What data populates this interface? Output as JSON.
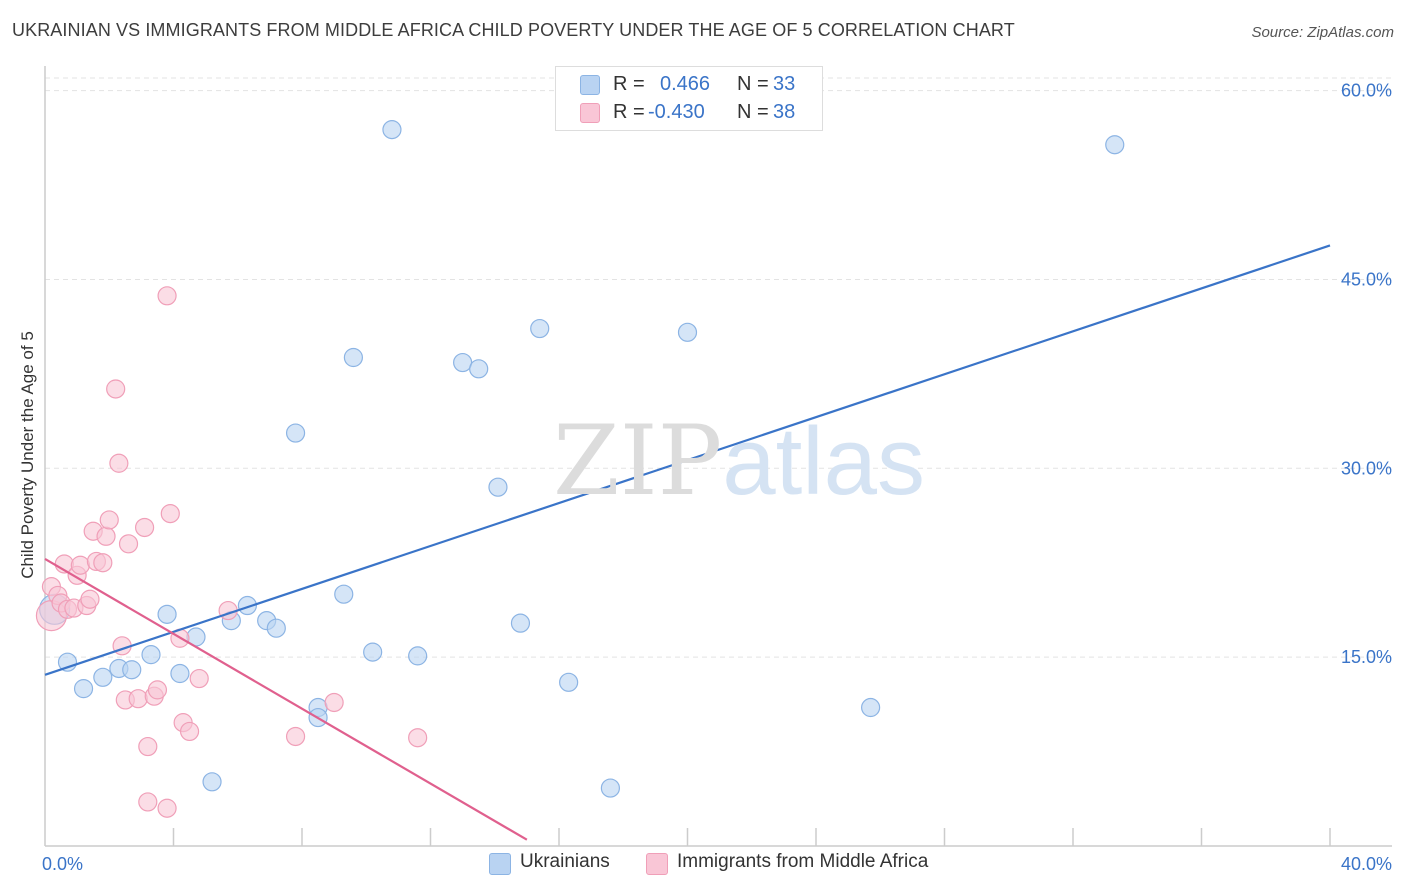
{
  "title": "UKRAINIAN VS IMMIGRANTS FROM MIDDLE AFRICA CHILD POVERTY UNDER THE AGE OF 5 CORRELATION CHART",
  "source": "Source: ZipAtlas.com",
  "watermark": {
    "zip": "ZIP",
    "atlas": "atlas"
  },
  "colors": {
    "blue_fill": "#b9d3f2",
    "blue_stroke": "#8cb4e4",
    "blue_line": "#3a74c8",
    "pink_fill": "#f9c6d6",
    "pink_stroke": "#f09fb8",
    "pink_line": "#e0608e",
    "grid": "#e3e3e3",
    "axis": "#cccccc",
    "tick_text": "#3a74c8"
  },
  "stats": {
    "rows": [
      {
        "r_label": "R =",
        "r_value": "0.466",
        "n_label": "N =",
        "n_value": "33",
        "color": "blue"
      },
      {
        "r_label": "R =",
        "r_value": "-0.430",
        "n_label": "N =",
        "n_value": "38",
        "color": "pink"
      }
    ]
  },
  "legend": {
    "items": [
      "Ukrainians",
      "Immigrants from Middle Africa"
    ]
  },
  "chart_data": {
    "type": "scatter",
    "title": "UKRAINIAN VS IMMIGRANTS FROM MIDDLE AFRICA CHILD POVERTY UNDER THE AGE OF 5 CORRELATION CHART",
    "xlabel": "",
    "ylabel": "Child Poverty Under the Age of 5",
    "xlim": [
      0,
      40
    ],
    "ylim": [
      0,
      61
    ],
    "x_ticks": [
      {
        "value": 0,
        "label": "0.0%"
      },
      {
        "value": 40,
        "label": "40.0%"
      }
    ],
    "y_ticks": [
      {
        "value": 15,
        "label": "15.0%"
      },
      {
        "value": 30,
        "label": "30.0%"
      },
      {
        "value": 45,
        "label": "45.0%"
      },
      {
        "value": 60,
        "label": "60.0%"
      }
    ],
    "grid": true,
    "legend_position": "bottom-center",
    "series": [
      {
        "name": "Ukrainians",
        "color": "blue",
        "trendline": {
          "x": [
            0,
            40
          ],
          "y": [
            13.6,
            47.7
          ]
        },
        "points": [
          {
            "x": 0.3,
            "y": 18.8,
            "big": true
          },
          {
            "x": 0.7,
            "y": 14.6
          },
          {
            "x": 1.2,
            "y": 12.5
          },
          {
            "x": 1.8,
            "y": 13.4
          },
          {
            "x": 2.3,
            "y": 14.1
          },
          {
            "x": 2.7,
            "y": 14.0
          },
          {
            "x": 3.3,
            "y": 15.2
          },
          {
            "x": 3.8,
            "y": 18.4
          },
          {
            "x": 4.2,
            "y": 13.7
          },
          {
            "x": 4.7,
            "y": 16.6
          },
          {
            "x": 5.2,
            "y": 5.1
          },
          {
            "x": 5.8,
            "y": 17.9
          },
          {
            "x": 6.3,
            "y": 19.1
          },
          {
            "x": 6.9,
            "y": 17.9
          },
          {
            "x": 7.2,
            "y": 17.3
          },
          {
            "x": 7.8,
            "y": 32.8
          },
          {
            "x": 8.5,
            "y": 11.0
          },
          {
            "x": 8.5,
            "y": 10.2
          },
          {
            "x": 9.3,
            "y": 20.0
          },
          {
            "x": 9.6,
            "y": 38.8
          },
          {
            "x": 10.2,
            "y": 15.4
          },
          {
            "x": 10.8,
            "y": 56.9
          },
          {
            "x": 11.6,
            "y": 15.1
          },
          {
            "x": 13.0,
            "y": 38.4
          },
          {
            "x": 13.5,
            "y": 37.9
          },
          {
            "x": 14.1,
            "y": 28.5
          },
          {
            "x": 14.8,
            "y": 17.7
          },
          {
            "x": 15.4,
            "y": 41.1
          },
          {
            "x": 16.3,
            "y": 13.0
          },
          {
            "x": 17.6,
            "y": 4.6
          },
          {
            "x": 20.0,
            "y": 40.8
          },
          {
            "x": 25.7,
            "y": 11.0
          },
          {
            "x": 33.3,
            "y": 55.7
          }
        ]
      },
      {
        "name": "Immigrants from Middle Africa",
        "color": "pink",
        "trendline": {
          "x": [
            0,
            15.0
          ],
          "y": [
            22.8,
            0.5
          ]
        },
        "points": [
          {
            "x": 0.2,
            "y": 18.3,
            "big": true
          },
          {
            "x": 0.2,
            "y": 20.6
          },
          {
            "x": 0.4,
            "y": 19.9
          },
          {
            "x": 0.5,
            "y": 19.3
          },
          {
            "x": 0.6,
            "y": 22.4
          },
          {
            "x": 0.7,
            "y": 18.8
          },
          {
            "x": 0.9,
            "y": 18.9
          },
          {
            "x": 1.0,
            "y": 21.5
          },
          {
            "x": 1.1,
            "y": 22.3
          },
          {
            "x": 1.3,
            "y": 19.1
          },
          {
            "x": 1.4,
            "y": 19.6
          },
          {
            "x": 1.5,
            "y": 25.0
          },
          {
            "x": 1.6,
            "y": 22.6
          },
          {
            "x": 1.8,
            "y": 22.5
          },
          {
            "x": 1.9,
            "y": 24.6
          },
          {
            "x": 2.0,
            "y": 25.9
          },
          {
            "x": 2.2,
            "y": 36.3
          },
          {
            "x": 2.3,
            "y": 30.4
          },
          {
            "x": 2.4,
            "y": 15.9
          },
          {
            "x": 2.5,
            "y": 11.6
          },
          {
            "x": 2.6,
            "y": 24.0
          },
          {
            "x": 2.9,
            "y": 11.7
          },
          {
            "x": 3.1,
            "y": 25.3
          },
          {
            "x": 3.2,
            "y": 7.9
          },
          {
            "x": 3.2,
            "y": 3.5
          },
          {
            "x": 3.4,
            "y": 11.9
          },
          {
            "x": 3.5,
            "y": 12.4
          },
          {
            "x": 3.8,
            "y": 43.7
          },
          {
            "x": 3.8,
            "y": 3.0
          },
          {
            "x": 3.9,
            "y": 26.4
          },
          {
            "x": 4.2,
            "y": 16.5
          },
          {
            "x": 4.3,
            "y": 9.8
          },
          {
            "x": 4.5,
            "y": 9.1
          },
          {
            "x": 4.8,
            "y": 13.3
          },
          {
            "x": 5.7,
            "y": 18.7
          },
          {
            "x": 7.8,
            "y": 8.7
          },
          {
            "x": 9.0,
            "y": 11.4
          },
          {
            "x": 11.6,
            "y": 8.6
          }
        ]
      }
    ]
  }
}
